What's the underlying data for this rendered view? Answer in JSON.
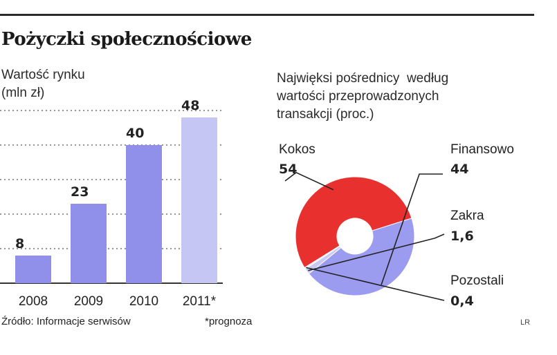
{
  "title": "Pożyczki społecznościowe",
  "source": "Źródło: Informacje serwisów",
  "note": "*prognoza",
  "credit": "LR",
  "colors": {
    "bar": "#9090ea",
    "bar_forecast": "#c6c6f4",
    "kokos": "#e8312e",
    "finansowo": "#9b9bf0",
    "zakra": "#c9c9f4",
    "pozostali": "#e4e4f8",
    "gridline": "#555555"
  },
  "chart_data": [
    {
      "type": "bar",
      "title": "Wartość rynku (mln zł)",
      "title_lines": [
        "Wartość rynku",
        "(mln zł)"
      ],
      "categories": [
        "2008",
        "2009",
        "2010",
        "2011*"
      ],
      "values": [
        8,
        23,
        40,
        48
      ],
      "value_labels": [
        "8",
        "23",
        "40",
        "48"
      ],
      "forecast": [
        false,
        false,
        false,
        true
      ],
      "ylim": [
        0,
        50
      ],
      "grid": true
    },
    {
      "type": "pie",
      "title": "Najwięksi pośrednicy według wartości przeprowadzonych transakcji (proc.)",
      "title_lines": [
        "Najwięksi pośrednicy  według",
        "wartości przeprowadzonych",
        "transakcji (proc.)"
      ],
      "donut": true,
      "slices": [
        {
          "name": "Kokos",
          "value": 54,
          "label": "54",
          "color": "#e8312e"
        },
        {
          "name": "Finansowo",
          "value": 44,
          "label": "44",
          "color": "#9b9bf0"
        },
        {
          "name": "Zakra",
          "value": 1.6,
          "label": "1,6",
          "color": "#c9c9f4"
        },
        {
          "name": "Pozostali",
          "value": 0.4,
          "label": "0,4",
          "color": "#e4e4f8"
        }
      ]
    }
  ]
}
